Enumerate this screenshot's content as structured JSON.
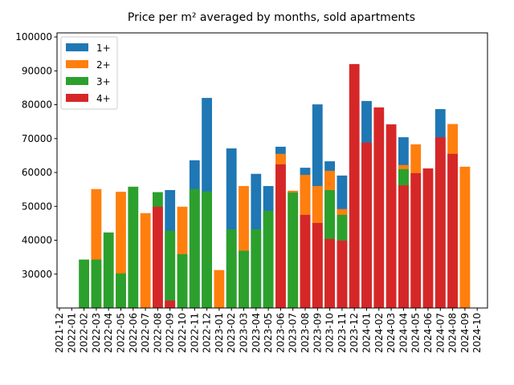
{
  "chart_data": {
    "type": "bar",
    "title": "Price per m² averaged by months, sold apartments",
    "categories": [
      "2021-12",
      "2022-01",
      "2022-02",
      "2022-03",
      "2022-04",
      "2022-05",
      "2022-06",
      "2022-07",
      "2022-08",
      "2022-09",
      "2022-10",
      "2022-11",
      "2022-12",
      "2023-01",
      "2023-02",
      "2023-03",
      "2023-04",
      "2023-05",
      "2023-06",
      "2023-07",
      "2023-08",
      "2023-09",
      "2023-10",
      "2023-11",
      "2023-12",
      "2024-01",
      "2024-02",
      "2024-03",
      "2024-04",
      "2024-05",
      "2024-06",
      "2024-07",
      "2024-08",
      "2024-09",
      "2024-10"
    ],
    "series": [
      {
        "name": "1+",
        "color": "#1f77b4",
        "values": [
          null,
          null,
          null,
          null,
          null,
          null,
          null,
          null,
          null,
          54800,
          null,
          63600,
          82000,
          null,
          67100,
          null,
          59600,
          56000,
          67600,
          null,
          61400,
          80100,
          63300,
          59100,
          null,
          81100,
          null,
          null,
          70400,
          null,
          null,
          78700,
          null,
          null,
          null
        ]
      },
      {
        "name": "2+",
        "color": "#ff7f0e",
        "values": [
          null,
          null,
          null,
          55100,
          null,
          54300,
          null,
          48000,
          null,
          null,
          49900,
          null,
          null,
          31200,
          null,
          56000,
          null,
          null,
          65500,
          54600,
          59300,
          56000,
          60500,
          49200,
          null,
          null,
          null,
          null,
          62200,
          68300,
          null,
          null,
          74300,
          61700,
          null
        ]
      },
      {
        "name": "3+",
        "color": "#2ca02c",
        "values": [
          null,
          null,
          34300,
          34300,
          42300,
          30200,
          55800,
          null,
          54200,
          42800,
          35900,
          55100,
          54400,
          null,
          43200,
          36900,
          43200,
          48700,
          null,
          54100,
          null,
          null,
          54800,
          47500,
          null,
          null,
          null,
          null,
          61000,
          null,
          null,
          null,
          null,
          null,
          null
        ]
      },
      {
        "name": "4+",
        "color": "#d62728",
        "values": [
          null,
          null,
          null,
          null,
          null,
          null,
          null,
          null,
          49900,
          22200,
          null,
          null,
          null,
          null,
          null,
          null,
          null,
          null,
          62400,
          null,
          47500,
          45100,
          40400,
          39900,
          92000,
          68800,
          79200,
          74200,
          56200,
          59800,
          61200,
          70400,
          65500,
          null,
          null
        ]
      }
    ],
    "ylim": [
      20000,
      101200
    ],
    "yticks": [
      30000,
      40000,
      50000,
      60000,
      70000,
      80000,
      90000,
      100000
    ],
    "legend": "upper left"
  }
}
